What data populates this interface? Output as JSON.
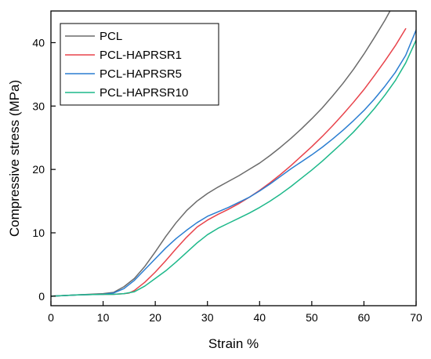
{
  "chart_data": {
    "type": "line",
    "xlabel": "Strain %",
    "ylabel": "Compressive stress (MPa)",
    "xlim": [
      0,
      70
    ],
    "ylim": [
      -1.5,
      45
    ],
    "xticks": [
      0,
      10,
      20,
      30,
      40,
      50,
      60,
      70
    ],
    "yticks": [
      0,
      10,
      20,
      30,
      40
    ],
    "grid": false,
    "legend_position": "top-left",
    "series": [
      {
        "name": "PCL",
        "color": "#6b6b6b",
        "x": [
          0,
          5,
          10,
          12,
          14,
          16,
          18,
          20,
          22,
          24,
          26,
          28,
          30,
          32,
          34,
          36,
          38,
          40,
          42,
          44,
          46,
          48,
          50,
          52,
          54,
          56,
          58,
          60,
          62,
          64,
          65
        ],
        "y": [
          0,
          0.2,
          0.4,
          0.6,
          1.5,
          2.8,
          4.7,
          7.0,
          9.4,
          11.6,
          13.5,
          15.0,
          16.2,
          17.2,
          18.1,
          19.0,
          20.0,
          21.0,
          22.2,
          23.5,
          24.9,
          26.4,
          28.0,
          29.7,
          31.6,
          33.6,
          35.8,
          38.2,
          40.8,
          43.5,
          45.0
        ]
      },
      {
        "name": "PCL-HAPRSR1",
        "color": "#e8434b",
        "x": [
          0,
          5,
          10,
          12,
          14,
          15,
          16,
          18,
          20,
          22,
          24,
          26,
          28,
          30,
          32,
          34,
          36,
          38,
          40,
          42,
          44,
          46,
          48,
          50,
          52,
          54,
          56,
          58,
          60,
          62,
          64,
          66,
          68
        ],
        "y": [
          0,
          0.2,
          0.3,
          0.3,
          0.4,
          0.5,
          0.9,
          2.2,
          3.8,
          5.6,
          7.5,
          9.3,
          10.9,
          12.0,
          12.9,
          13.7,
          14.6,
          15.6,
          16.7,
          17.9,
          19.2,
          20.6,
          22.1,
          23.6,
          25.2,
          26.9,
          28.7,
          30.6,
          32.6,
          34.8,
          37.1,
          39.5,
          42.2
        ]
      },
      {
        "name": "PCL-HAPRSR5",
        "color": "#2a7dd1",
        "x": [
          0,
          5,
          10,
          12,
          14,
          16,
          18,
          20,
          22,
          24,
          26,
          28,
          30,
          32,
          34,
          36,
          38,
          40,
          42,
          44,
          46,
          48,
          50,
          52,
          54,
          56,
          58,
          60,
          62,
          64,
          66,
          68,
          70
        ],
        "y": [
          0,
          0.2,
          0.3,
          0.5,
          1.2,
          2.5,
          4.2,
          5.9,
          7.6,
          9.1,
          10.4,
          11.6,
          12.6,
          13.3,
          14.0,
          14.8,
          15.6,
          16.6,
          17.7,
          18.9,
          20.1,
          21.2,
          22.3,
          23.5,
          24.8,
          26.2,
          27.7,
          29.3,
          31.1,
          33.1,
          35.3,
          38.0,
          42.0
        ]
      },
      {
        "name": "PCL-HAPRSR10",
        "color": "#1db88a",
        "x": [
          0,
          5,
          10,
          12,
          14,
          16,
          18,
          20,
          22,
          24,
          26,
          28,
          30,
          32,
          34,
          36,
          38,
          40,
          42,
          44,
          46,
          48,
          50,
          52,
          54,
          56,
          58,
          60,
          62,
          64,
          66,
          68,
          70
        ],
        "y": [
          0,
          0.2,
          0.3,
          0.3,
          0.4,
          0.7,
          1.6,
          2.8,
          4.0,
          5.4,
          6.9,
          8.4,
          9.7,
          10.7,
          11.5,
          12.3,
          13.1,
          14.0,
          15.0,
          16.1,
          17.3,
          18.6,
          19.9,
          21.3,
          22.8,
          24.3,
          25.9,
          27.7,
          29.6,
          31.7,
          34.0,
          36.8,
          40.4
        ]
      }
    ]
  }
}
